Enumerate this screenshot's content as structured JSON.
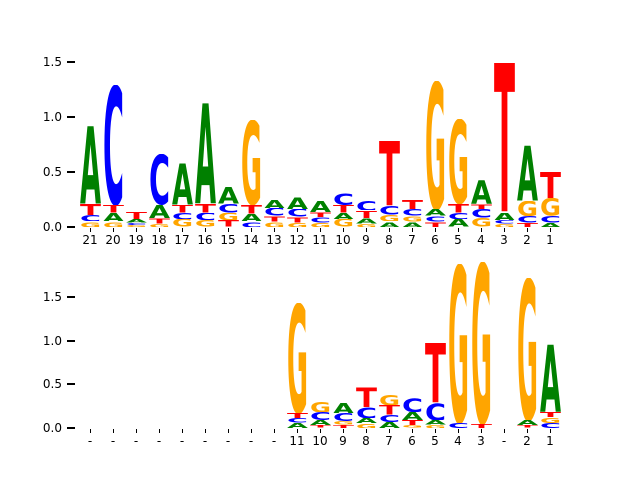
{
  "figure": {
    "background": "#ffffff"
  },
  "colors": {
    "A": "#008000",
    "C": "#0000ff",
    "G": "#ffa500",
    "T": "#ff0000"
  },
  "chart_data": [
    {
      "type": "sequence_logo",
      "title": "",
      "xlabel": "",
      "ylabel": "",
      "ylim": [
        0,
        1.8
      ],
      "grid": false,
      "legend": "none",
      "yticks": [
        "0.0",
        "0.5",
        "1.0",
        "1.5"
      ],
      "positions": [
        {
          "label": "21",
          "stack": [
            [
              "G",
              0.05
            ],
            [
              "C",
              0.06
            ],
            [
              "T",
              0.1
            ],
            [
              "A",
              0.72
            ]
          ]
        },
        {
          "label": "20",
          "stack": [
            [
              "G",
              0.05
            ],
            [
              "A",
              0.08
            ],
            [
              "T",
              0.07
            ],
            [
              "C",
              1.09
            ]
          ]
        },
        {
          "label": "19",
          "stack": [
            [
              "G",
              0.02
            ],
            [
              "C",
              0.02
            ],
            [
              "A",
              0.03
            ],
            [
              "T",
              0.07
            ]
          ]
        },
        {
          "label": "18",
          "stack": [
            [
              "G",
              0.03
            ],
            [
              "T",
              0.05
            ],
            [
              "A",
              0.12
            ],
            [
              "C",
              0.46
            ]
          ]
        },
        {
          "label": "17",
          "stack": [
            [
              "G",
              0.07
            ],
            [
              "C",
              0.06
            ],
            [
              "T",
              0.07
            ],
            [
              "A",
              0.38
            ]
          ]
        },
        {
          "label": "16",
          "stack": [
            [
              "G",
              0.06
            ],
            [
              "C",
              0.07
            ],
            [
              "T",
              0.08
            ],
            [
              "A",
              0.93
            ]
          ]
        },
        {
          "label": "15",
          "stack": [
            [
              "T",
              0.06
            ],
            [
              "G",
              0.07
            ],
            [
              "C",
              0.08
            ],
            [
              "A",
              0.15
            ]
          ]
        },
        {
          "label": "14",
          "stack": [
            [
              "C",
              0.05
            ],
            [
              "A",
              0.07
            ],
            [
              "T",
              0.08
            ],
            [
              "G",
              0.77
            ]
          ]
        },
        {
          "label": "13",
          "stack": [
            [
              "G",
              0.05
            ],
            [
              "T",
              0.05
            ],
            [
              "C",
              0.07
            ],
            [
              "A",
              0.08
            ]
          ]
        },
        {
          "label": "12",
          "stack": [
            [
              "G",
              0.04
            ],
            [
              "T",
              0.05
            ],
            [
              "C",
              0.07
            ],
            [
              "A",
              0.11
            ]
          ]
        },
        {
          "label": "11",
          "stack": [
            [
              "G",
              0.04
            ],
            [
              "C",
              0.05
            ],
            [
              "T",
              0.05
            ],
            [
              "A",
              0.1
            ]
          ]
        },
        {
          "label": "10",
          "stack": [
            [
              "G",
              0.07
            ],
            [
              "A",
              0.06
            ],
            [
              "T",
              0.07
            ],
            [
              "C",
              0.11
            ]
          ]
        },
        {
          "label": "9",
          "stack": [
            [
              "G",
              0.03
            ],
            [
              "A",
              0.05
            ],
            [
              "T",
              0.07
            ],
            [
              "C",
              0.09
            ]
          ]
        },
        {
          "label": "8",
          "stack": [
            [
              "A",
              0.05
            ],
            [
              "G",
              0.06
            ],
            [
              "C",
              0.08
            ],
            [
              "T",
              0.6
            ]
          ]
        },
        {
          "label": "7",
          "stack": [
            [
              "A",
              0.05
            ],
            [
              "G",
              0.05
            ],
            [
              "C",
              0.06
            ],
            [
              "T",
              0.09
            ]
          ]
        },
        {
          "label": "6",
          "stack": [
            [
              "T",
              0.05
            ],
            [
              "C",
              0.05
            ],
            [
              "A",
              0.06
            ],
            [
              "G",
              1.17
            ]
          ]
        },
        {
          "label": "5",
          "stack": [
            [
              "A",
              0.07
            ],
            [
              "C",
              0.06
            ],
            [
              "T",
              0.08
            ],
            [
              "G",
              0.77
            ]
          ]
        },
        {
          "label": "4",
          "stack": [
            [
              "G",
              0.08
            ],
            [
              "C",
              0.08
            ],
            [
              "T",
              0.05
            ],
            [
              "A",
              0.22
            ]
          ]
        },
        {
          "label": "3",
          "stack": [
            [
              "G",
              0.03
            ],
            [
              "C",
              0.03
            ],
            [
              "A",
              0.07
            ],
            [
              "T",
              1.38
            ]
          ]
        },
        {
          "label": "2",
          "stack": [
            [
              "T",
              0.04
            ],
            [
              "C",
              0.06
            ],
            [
              "G",
              0.14
            ],
            [
              "A",
              0.51
            ]
          ]
        },
        {
          "label": "1",
          "stack": [
            [
              "A",
              0.04
            ],
            [
              "C",
              0.06
            ],
            [
              "G",
              0.16
            ],
            [
              "T",
              0.24
            ]
          ]
        }
      ]
    },
    {
      "type": "sequence_logo",
      "title": "",
      "xlabel": "",
      "ylabel": "",
      "ylim": [
        0,
        2.0
      ],
      "grid": false,
      "legend": "none",
      "yticks": [
        "0.0",
        "0.5",
        "1.0",
        "1.5"
      ],
      "positions": [
        {
          "label": "-",
          "stack": []
        },
        {
          "label": "-",
          "stack": []
        },
        {
          "label": "-",
          "stack": []
        },
        {
          "label": "-",
          "stack": []
        },
        {
          "label": "-",
          "stack": []
        },
        {
          "label": "-",
          "stack": []
        },
        {
          "label": "-",
          "stack": []
        },
        {
          "label": "-",
          "stack": []
        },
        {
          "label": "-",
          "stack": []
        },
        {
          "label": "11",
          "stack": [
            [
              "A",
              0.06
            ],
            [
              "C",
              0.05
            ],
            [
              "T",
              0.06
            ],
            [
              "G",
              1.26
            ]
          ]
        },
        {
          "label": "10",
          "stack": [
            [
              "T",
              0.03
            ],
            [
              "A",
              0.06
            ],
            [
              "C",
              0.09
            ],
            [
              "G",
              0.12
            ]
          ]
        },
        {
          "label": "9",
          "stack": [
            [
              "T",
              0.04
            ],
            [
              "G",
              0.04
            ],
            [
              "C",
              0.09
            ],
            [
              "A",
              0.12
            ]
          ]
        },
        {
          "label": "8",
          "stack": [
            [
              "G",
              0.05
            ],
            [
              "A",
              0.06
            ],
            [
              "C",
              0.13
            ],
            [
              "T",
              0.23
            ]
          ]
        },
        {
          "label": "7",
          "stack": [
            [
              "A",
              0.07
            ],
            [
              "C",
              0.08
            ],
            [
              "T",
              0.11
            ],
            [
              "G",
              0.12
            ]
          ]
        },
        {
          "label": "6",
          "stack": [
            [
              "G",
              0.03
            ],
            [
              "T",
              0.06
            ],
            [
              "A",
              0.09
            ],
            [
              "C",
              0.16
            ]
          ]
        },
        {
          "label": "5",
          "stack": [
            [
              "G",
              0.04
            ],
            [
              "A",
              0.05
            ],
            [
              "C",
              0.2
            ],
            [
              "T",
              0.69
            ]
          ]
        },
        {
          "label": "4",
          "stack": [
            [
              "C",
              0.06
            ],
            [
              "G",
              1.82
            ]
          ]
        },
        {
          "label": "3",
          "stack": [
            [
              "T",
              0.05
            ],
            [
              "G",
              1.85
            ]
          ]
        },
        {
          "label": "-",
          "stack": []
        },
        {
          "label": "2",
          "stack": [
            [
              "T",
              0.03
            ],
            [
              "A",
              0.06
            ],
            [
              "G",
              1.63
            ]
          ]
        },
        {
          "label": "1",
          "stack": [
            [
              "C",
              0.06
            ],
            [
              "G",
              0.06
            ],
            [
              "T",
              0.06
            ],
            [
              "A",
              0.78
            ]
          ]
        }
      ]
    }
  ]
}
